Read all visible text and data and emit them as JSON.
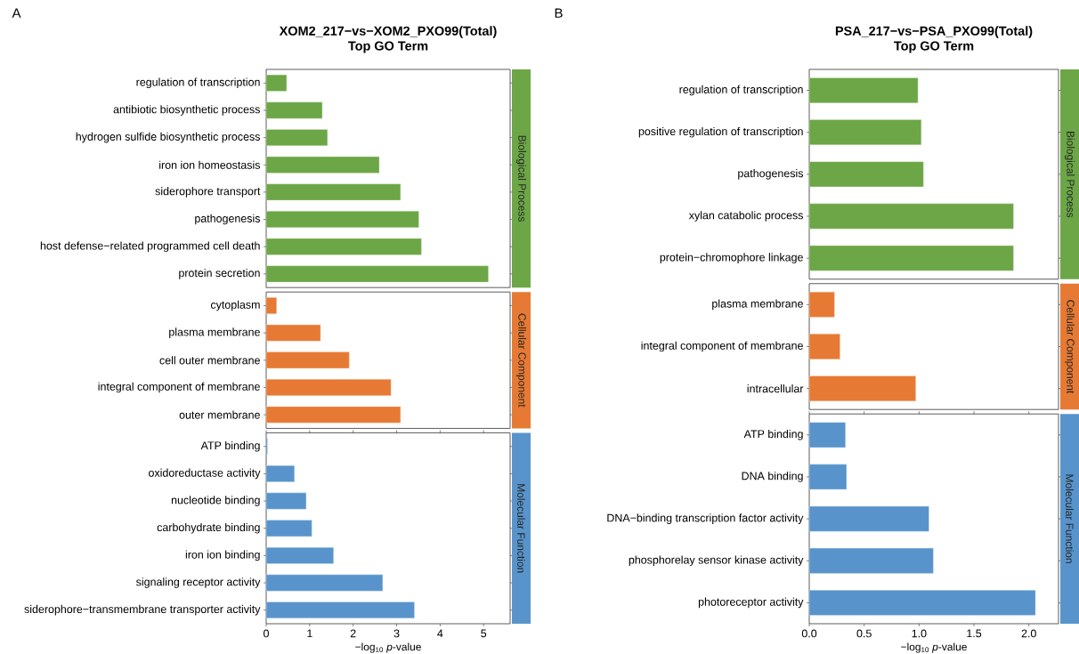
{
  "chart_data": [
    {
      "type": "bar",
      "orientation": "horizontal",
      "title": "XOM2_217−vs−XOM2_PXO99(Total)",
      "subtitle": "Top GO Term",
      "annotations": [
        "Biological Process",
        "A"
      ],
      "tick_labels": "y",
      "xlim": [
        0,
        5.61
      ],
      "color": "#6ca646",
      "categories": [
        "regulation of transcription",
        "antibiotic biosynthetic process",
        "hydrogen sulfide biosynthetic process",
        "iron ion homeostasis",
        "siderophore transport",
        "pathogenesis",
        "host defense−related programmed cell death",
        "protein secretion"
      ],
      "values": [
        0.47,
        1.29,
        1.41,
        2.6,
        3.09,
        3.51,
        3.57,
        5.11
      ]
    },
    {
      "type": "bar",
      "orientation": "horizontal",
      "annotations": [
        "Cellular Component"
      ],
      "tick_labels": "y",
      "xlim": [
        0,
        5.61
      ],
      "color": "#e67a34",
      "categories": [
        "cytoplasm",
        "plasma membrane",
        "cell outer membrane",
        "integral component of membrane",
        "outer membrane"
      ],
      "values": [
        0.24,
        1.25,
        1.91,
        2.87,
        3.09
      ]
    },
    {
      "type": "bar",
      "orientation": "horizontal",
      "annotations": [
        "Molecular Function"
      ],
      "xlabel": "−log$_{10}$ *p*-value",
      "xlim": [
        0,
        5.61
      ],
      "xticks": [
        0,
        1,
        2,
        3,
        4,
        5
      ],
      "color": "#5894cb",
      "categories": [
        "ATP binding",
        "oxidoreductase activity",
        "nucleotide binding",
        "carbohydrate binding",
        "iron ion binding",
        "signaling receptor activity",
        "siderophore−transmembrane transporter activity"
      ],
      "values": [
        0.03,
        0.65,
        0.92,
        1.05,
        1.55,
        2.68,
        3.41
      ]
    },
    {
      "type": "bar",
      "orientation": "horizontal",
      "title": "PSA_217−vs−PSA_PXO99(Total)",
      "subtitle": "Top GO Term",
      "annotations": [
        "Biological Process",
        "B"
      ],
      "tick_labels": "y",
      "xlim": [
        0,
        2.27
      ],
      "color": "#6ca646",
      "categories": [
        "regulation of transcription",
        "positive regulation of transcription",
        "pathogenesis",
        "xylan catabolic process",
        "protein−chromophore linkage"
      ],
      "values": [
        0.99,
        1.02,
        1.04,
        1.86,
        1.86
      ]
    },
    {
      "type": "bar",
      "orientation": "horizontal",
      "annotations": [
        "Cellular Component"
      ],
      "tick_labels": "y",
      "xlim": [
        0,
        2.27
      ],
      "color": "#e67a34",
      "categories": [
        "plasma membrane",
        "integral component of membrane",
        "intracellular"
      ],
      "values": [
        0.23,
        0.28,
        0.97
      ]
    },
    {
      "type": "bar",
      "orientation": "horizontal",
      "annotations": [
        "Molecular Function"
      ],
      "xlabel": "−log$_{10}$ *p*-value",
      "xlim": [
        0,
        2.27
      ],
      "xticks": [
        {
          "value": 0,
          "label": "0.0"
        },
        0.5,
        {
          "value": 1,
          "label": "1.0"
        },
        1.5,
        {
          "value": 2,
          "label": "2.0"
        }
      ],
      "color": "#5894cb",
      "categories": [
        "ATP binding",
        "DNA binding",
        "DNA−binding transcription factor activity",
        "phosphorelay sensor kinase activity",
        "photoreceptor activity"
      ],
      "values": [
        0.33,
        0.34,
        1.09,
        1.13,
        2.06
      ]
    }
  ]
}
